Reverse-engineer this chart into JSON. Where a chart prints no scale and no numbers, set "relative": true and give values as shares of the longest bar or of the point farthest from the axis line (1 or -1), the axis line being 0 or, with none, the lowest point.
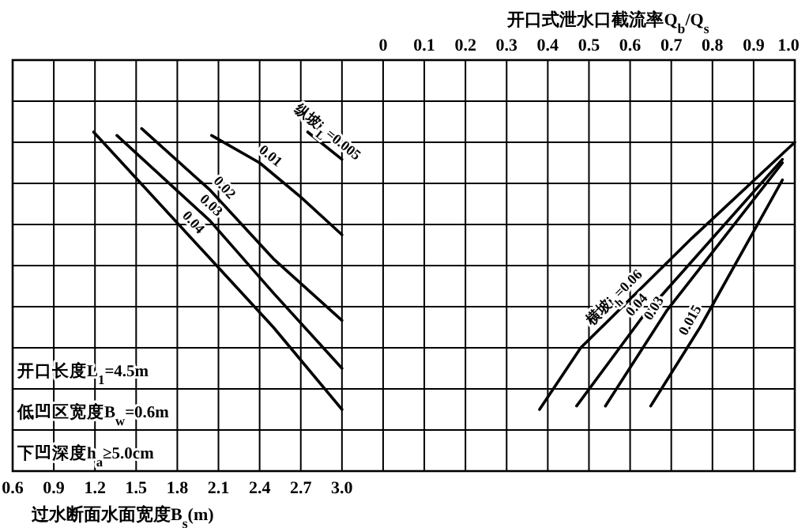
{
  "chart_data": {
    "type": "line",
    "relative": true,
    "xlabel": "过水断面水面宽度B$_{s}$(m)",
    "x2label": "开口式泄水口截流率Q$_{b}$/Q$_{s}$",
    "xlim": [
      0.6,
      6.3
    ],
    "xticks": [
      0.6,
      0.9,
      1.2,
      1.5,
      1.8,
      2.1,
      2.4,
      2.7,
      {
        "value": 3,
        "label": "3.0"
      }
    ],
    "x2lim": [
      -0.9,
      1.0
    ],
    "x2ticks": [
      0,
      0.1,
      0.2,
      0.3,
      0.4,
      0.5,
      0.6,
      0.7,
      0.8,
      0.9,
      {
        "value": 1,
        "label": "1.0"
      }
    ],
    "grid": true,
    "marker": "none",
    "line_style": "solid",
    "series": [
      {
        "name": "纵坡i$_{L}$=0.005",
        "color": "#000000",
        "x": [
          2.75,
          3.0
        ],
        "values": [
          0.99,
          0.91
        ]
      },
      {
        "name": "0.01",
        "color": "#000000",
        "x": [
          2.05,
          2.4,
          2.7,
          3.0
        ],
        "values": [
          0.98,
          0.9,
          0.8,
          0.69
        ]
      },
      {
        "name": "0.02",
        "color": "#000000",
        "x": [
          1.54,
          2.04,
          2.5,
          3.0
        ],
        "values": [
          1.0,
          0.82,
          0.62,
          0.44
        ]
      },
      {
        "name": "0.03",
        "color": "#000000",
        "x": [
          1.36,
          2.04,
          2.5,
          3.0
        ],
        "values": [
          0.98,
          0.73,
          0.52,
          0.3
        ]
      },
      {
        "name": "0.04",
        "color": "#000000",
        "x": [
          1.19,
          2.04,
          2.5,
          3.0
        ],
        "values": [
          0.99,
          0.62,
          0.42,
          0.18
        ]
      },
      {
        "name": "横坡i$_{h}$=0.06",
        "color": "#000000",
        "axis": "x2",
        "x": [
          0.38,
          0.48,
          0.75,
          1.0
        ],
        "values": [
          0.18,
          0.36,
          0.68,
          0.96
        ]
      },
      {
        "name": "0.04",
        "color": "#000000",
        "axis": "x2",
        "x": [
          0.47,
          0.63,
          0.97
        ],
        "values": [
          0.19,
          0.45,
          0.91
        ]
      },
      {
        "name": "0.03",
        "color": "#000000",
        "axis": "x2",
        "x": [
          0.54,
          0.69,
          0.97
        ],
        "values": [
          0.19,
          0.47,
          0.9
        ]
      },
      {
        "name": "0.015",
        "color": "#000000",
        "axis": "x2",
        "x": [
          0.65,
          0.77,
          0.97
        ],
        "values": [
          0.19,
          0.42,
          0.85
        ]
      }
    ],
    "annotations": [
      "开口长度L$_{1}$=4.5m",
      "低凹区宽度B$_{w}$=0.6m",
      "下凹深度h$_{a}$≥5.0cm"
    ]
  }
}
